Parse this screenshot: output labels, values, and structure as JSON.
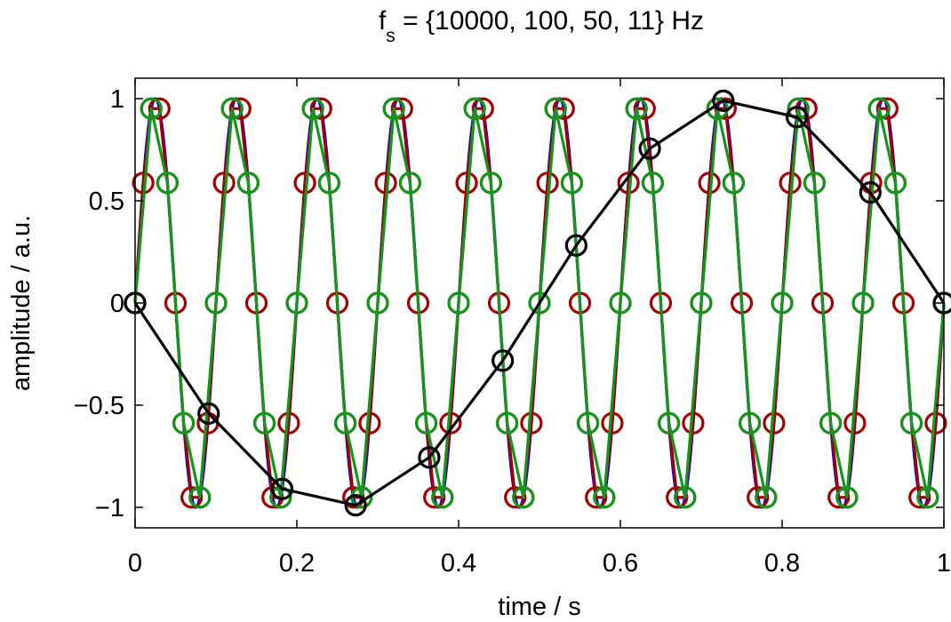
{
  "chart_data": {
    "type": "line",
    "title_parts": {
      "f": "f",
      "sub": "s",
      "rest": " = {10000, 100, 50, 11} Hz"
    },
    "xlabel": "time / s",
    "ylabel": "amplitude / a.u.",
    "xlim": [
      0,
      1
    ],
    "ylim": [
      -1.1,
      1.1
    ],
    "xticks": [
      0,
      0.2,
      0.4,
      0.6,
      0.8,
      1
    ],
    "xtick_labels": [
      "0",
      "0.2",
      "0.4",
      "0.6",
      "0.8",
      "1"
    ],
    "yticks": [
      -1,
      -0.5,
      0,
      0.5,
      1
    ],
    "ytick_labels": [
      "−1",
      "−0.5",
      "0",
      "0.5",
      "1"
    ],
    "grid": false,
    "signal_frequency_hz": 10,
    "series": [
      {
        "fs": 10000,
        "color": "#0000ff",
        "line": true,
        "markers": false
      },
      {
        "fs": 100,
        "color": "#a00000",
        "line": true,
        "markers": true
      },
      {
        "fs": 50,
        "color": "#14961e",
        "line": true,
        "markers": true
      },
      {
        "fs": 11,
        "color": "#000000",
        "line": true,
        "markers": true
      }
    ]
  }
}
